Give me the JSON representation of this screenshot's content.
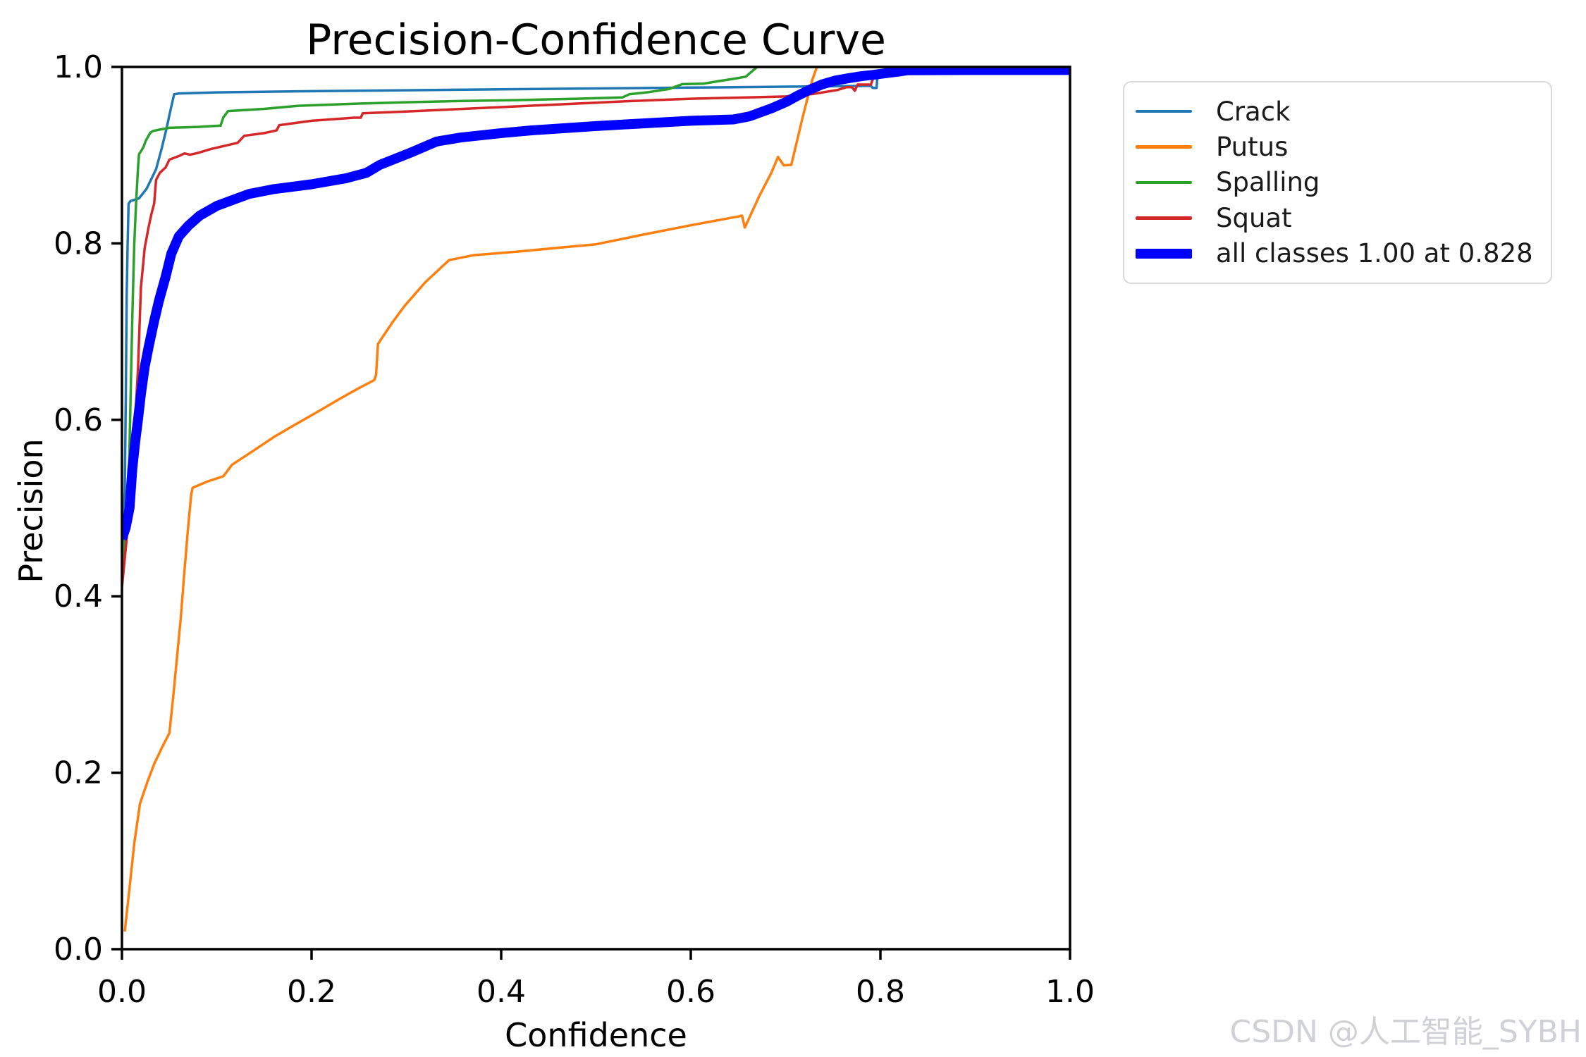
{
  "title": "Precision-Confidence Curve",
  "xlabel": "Confidence",
  "ylabel": "Precision",
  "watermark": "CSDN @人工智能_SYBH",
  "colors": {
    "crack": "#1f77b4",
    "putus": "#ff7f0e",
    "spalling": "#2ca02c",
    "squat": "#d62728",
    "all_classes": "#0000ff",
    "axis": "#000000",
    "legend_border": "#d9d9d9",
    "watermark_gray": "#cfd1d6"
  },
  "chart_data": {
    "type": "line",
    "title": "Precision-Confidence Curve",
    "xlabel": "Confidence",
    "ylabel": "Precision",
    "xlim": [
      0.0,
      1.0
    ],
    "ylim": [
      0.0,
      1.0
    ],
    "x_ticks": [
      "0.0",
      "0.2",
      "0.4",
      "0.6",
      "0.8",
      "1.0"
    ],
    "y_ticks": [
      "0.0",
      "0.2",
      "0.4",
      "0.6",
      "0.8",
      "1.0"
    ],
    "grid": false,
    "legend_position": "outside upper right",
    "annotation": "all classes reach precision 1.00 at confidence 0.828",
    "series": [
      {
        "name": "Crack",
        "color": "#1f77b4",
        "width": 3.5,
        "points": [
          [
            0.0,
            0.43
          ],
          [
            0.003,
            0.52
          ],
          [
            0.004,
            0.62
          ],
          [
            0.005,
            0.74
          ],
          [
            0.006,
            0.8
          ],
          [
            0.007,
            0.845
          ],
          [
            0.009,
            0.848
          ],
          [
            0.018,
            0.851
          ],
          [
            0.026,
            0.862
          ],
          [
            0.036,
            0.884
          ],
          [
            0.042,
            0.908
          ],
          [
            0.047,
            0.93
          ],
          [
            0.051,
            0.95
          ],
          [
            0.055,
            0.969
          ],
          [
            0.06,
            0.97
          ],
          [
            0.1,
            0.9712
          ],
          [
            0.2,
            0.9725
          ],
          [
            0.3,
            0.9736
          ],
          [
            0.4,
            0.9746
          ],
          [
            0.5,
            0.9756
          ],
          [
            0.6,
            0.9766
          ],
          [
            0.7,
            0.9776
          ],
          [
            0.78,
            0.9784
          ],
          [
            0.79,
            0.9786
          ],
          [
            0.792,
            0.9762
          ],
          [
            0.796,
            0.9762
          ],
          [
            0.797,
            0.993
          ],
          [
            0.81,
            0.994
          ],
          [
            0.822,
            0.9952
          ],
          [
            0.83,
            0.9962
          ],
          [
            1.0,
            0.9965
          ]
        ]
      },
      {
        "name": "Putus",
        "color": "#ff7f0e",
        "width": 3.5,
        "points": [
          [
            0.003,
            0.02
          ],
          [
            0.008,
            0.07
          ],
          [
            0.013,
            0.12
          ],
          [
            0.019,
            0.165
          ],
          [
            0.027,
            0.19
          ],
          [
            0.034,
            0.21
          ],
          [
            0.042,
            0.228
          ],
          [
            0.05,
            0.245
          ],
          [
            0.054,
            0.285
          ],
          [
            0.058,
            0.33
          ],
          [
            0.062,
            0.375
          ],
          [
            0.066,
            0.43
          ],
          [
            0.07,
            0.48
          ],
          [
            0.073,
            0.515
          ],
          [
            0.0745,
            0.523
          ],
          [
            0.09,
            0.53
          ],
          [
            0.107,
            0.536
          ],
          [
            0.116,
            0.549
          ],
          [
            0.14,
            0.566
          ],
          [
            0.161,
            0.581
          ],
          [
            0.18,
            0.593
          ],
          [
            0.203,
            0.607
          ],
          [
            0.23,
            0.624
          ],
          [
            0.25,
            0.636
          ],
          [
            0.266,
            0.645
          ],
          [
            0.268,
            0.651
          ],
          [
            0.27,
            0.686
          ],
          [
            0.285,
            0.71
          ],
          [
            0.298,
            0.729
          ],
          [
            0.32,
            0.756
          ],
          [
            0.345,
            0.781
          ],
          [
            0.37,
            0.7865
          ],
          [
            0.42,
            0.791
          ],
          [
            0.47,
            0.796
          ],
          [
            0.5,
            0.799
          ],
          [
            0.55,
            0.81
          ],
          [
            0.6,
            0.8205
          ],
          [
            0.65,
            0.8305
          ],
          [
            0.654,
            0.8315
          ],
          [
            0.657,
            0.818
          ],
          [
            0.672,
            0.853
          ],
          [
            0.685,
            0.88
          ],
          [
            0.692,
            0.898
          ],
          [
            0.698,
            0.8885
          ],
          [
            0.706,
            0.889
          ],
          [
            0.718,
            0.943
          ],
          [
            0.728,
            0.985
          ],
          [
            0.733,
            1.0
          ],
          [
            1.0,
            1.0
          ]
        ]
      },
      {
        "name": "Spalling",
        "color": "#2ca02c",
        "width": 3.5,
        "points": [
          [
            0.0,
            0.42
          ],
          [
            0.007,
            0.52
          ],
          [
            0.009,
            0.62
          ],
          [
            0.011,
            0.72
          ],
          [
            0.013,
            0.8
          ],
          [
            0.015,
            0.848
          ],
          [
            0.017,
            0.887
          ],
          [
            0.018,
            0.901
          ],
          [
            0.021,
            0.906
          ],
          [
            0.023,
            0.91
          ],
          [
            0.025,
            0.916
          ],
          [
            0.027,
            0.92
          ],
          [
            0.03,
            0.9255
          ],
          [
            0.033,
            0.9275
          ],
          [
            0.04,
            0.929
          ],
          [
            0.05,
            0.931
          ],
          [
            0.08,
            0.932
          ],
          [
            0.104,
            0.9335
          ],
          [
            0.107,
            0.943
          ],
          [
            0.112,
            0.95
          ],
          [
            0.15,
            0.9525
          ],
          [
            0.186,
            0.956
          ],
          [
            0.25,
            0.9585
          ],
          [
            0.3,
            0.96
          ],
          [
            0.36,
            0.9615
          ],
          [
            0.42,
            0.9625
          ],
          [
            0.48,
            0.964
          ],
          [
            0.528,
            0.9655
          ],
          [
            0.535,
            0.969
          ],
          [
            0.556,
            0.9715
          ],
          [
            0.577,
            0.975
          ],
          [
            0.591,
            0.9805
          ],
          [
            0.613,
            0.981
          ],
          [
            0.63,
            0.984
          ],
          [
            0.645,
            0.9865
          ],
          [
            0.658,
            0.989
          ],
          [
            0.663,
            0.9935
          ],
          [
            0.67,
            1.0
          ],
          [
            1.0,
            1.0
          ]
        ]
      },
      {
        "name": "Squat",
        "color": "#d62728",
        "width": 3.5,
        "points": [
          [
            0.0,
            0.41
          ],
          [
            0.01,
            0.52
          ],
          [
            0.014,
            0.6
          ],
          [
            0.017,
            0.66
          ],
          [
            0.02,
            0.75
          ],
          [
            0.024,
            0.795
          ],
          [
            0.028,
            0.818
          ],
          [
            0.031,
            0.833
          ],
          [
            0.034,
            0.845
          ],
          [
            0.036,
            0.872
          ],
          [
            0.04,
            0.88
          ],
          [
            0.046,
            0.886
          ],
          [
            0.05,
            0.895
          ],
          [
            0.06,
            0.899
          ],
          [
            0.066,
            0.902
          ],
          [
            0.072,
            0.9005
          ],
          [
            0.08,
            0.9025
          ],
          [
            0.094,
            0.907
          ],
          [
            0.122,
            0.914
          ],
          [
            0.129,
            0.922
          ],
          [
            0.15,
            0.925
          ],
          [
            0.163,
            0.928
          ],
          [
            0.166,
            0.934
          ],
          [
            0.2,
            0.939
          ],
          [
            0.245,
            0.9425
          ],
          [
            0.252,
            0.9425
          ],
          [
            0.254,
            0.9475
          ],
          [
            0.3,
            0.9495
          ],
          [
            0.36,
            0.9525
          ],
          [
            0.42,
            0.9555
          ],
          [
            0.48,
            0.9585
          ],
          [
            0.54,
            0.9615
          ],
          [
            0.6,
            0.964
          ],
          [
            0.66,
            0.9655
          ],
          [
            0.7,
            0.9665
          ],
          [
            0.73,
            0.9695
          ],
          [
            0.755,
            0.974
          ],
          [
            0.764,
            0.977
          ],
          [
            0.77,
            0.977
          ],
          [
            0.773,
            0.973
          ],
          [
            0.776,
            0.98
          ],
          [
            0.79,
            0.98
          ],
          [
            0.793,
            0.989
          ],
          [
            0.799,
            0.989
          ],
          [
            0.801,
            0.9935
          ],
          [
            0.815,
            0.9945
          ],
          [
            0.828,
            0.9962
          ],
          [
            1.0,
            0.9965
          ]
        ]
      },
      {
        "name": "all classes 1.00 at 0.828",
        "color": "#0000ff",
        "width": 14,
        "points": [
          [
            0.0,
            0.465
          ],
          [
            0.004,
            0.478
          ],
          [
            0.008,
            0.5
          ],
          [
            0.011,
            0.545
          ],
          [
            0.014,
            0.575
          ],
          [
            0.017,
            0.601
          ],
          [
            0.02,
            0.629
          ],
          [
            0.024,
            0.66
          ],
          [
            0.028,
            0.682
          ],
          [
            0.034,
            0.712
          ],
          [
            0.039,
            0.735
          ],
          [
            0.046,
            0.762
          ],
          [
            0.052,
            0.788
          ],
          [
            0.06,
            0.808
          ],
          [
            0.07,
            0.82
          ],
          [
            0.082,
            0.8315
          ],
          [
            0.1,
            0.8425
          ],
          [
            0.12,
            0.8505
          ],
          [
            0.134,
            0.856
          ],
          [
            0.16,
            0.8615
          ],
          [
            0.2,
            0.867
          ],
          [
            0.237,
            0.874
          ],
          [
            0.258,
            0.88
          ],
          [
            0.272,
            0.889
          ],
          [
            0.307,
            0.904
          ],
          [
            0.332,
            0.9155
          ],
          [
            0.357,
            0.92
          ],
          [
            0.4,
            0.925
          ],
          [
            0.431,
            0.928
          ],
          [
            0.5,
            0.933
          ],
          [
            0.55,
            0.936
          ],
          [
            0.6,
            0.939
          ],
          [
            0.645,
            0.9405
          ],
          [
            0.662,
            0.944
          ],
          [
            0.685,
            0.953
          ],
          [
            0.7,
            0.96
          ],
          [
            0.712,
            0.967
          ],
          [
            0.725,
            0.974
          ],
          [
            0.738,
            0.98
          ],
          [
            0.752,
            0.9845
          ],
          [
            0.765,
            0.987
          ],
          [
            0.78,
            0.9895
          ],
          [
            0.792,
            0.991
          ],
          [
            0.806,
            0.993
          ],
          [
            0.82,
            0.9948
          ],
          [
            0.828,
            0.9962
          ],
          [
            0.9,
            0.9965
          ],
          [
            1.0,
            0.9965
          ]
        ]
      }
    ]
  }
}
